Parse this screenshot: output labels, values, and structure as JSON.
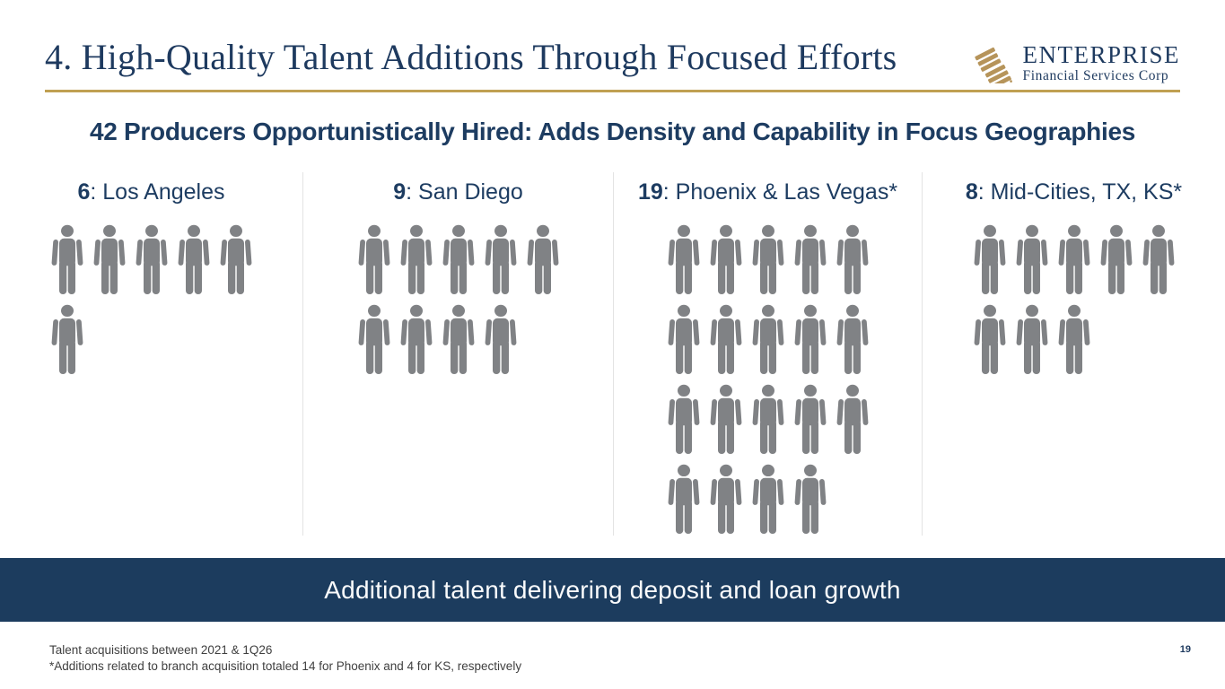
{
  "slide": {
    "title": "4. High-Quality Talent Additions Through Focused Efforts",
    "page_number": "19"
  },
  "logo": {
    "name": "ENTERPRISE",
    "tagline": "Financial Services Corp"
  },
  "subtitle": "42 Producers Opportunistically Hired: Adds Density and Capability in Focus Geographies",
  "columns": [
    {
      "count": "6",
      "rest": ": Los Angeles",
      "icons": 6
    },
    {
      "count": "9",
      "rest": ": San Diego",
      "icons": 9
    },
    {
      "count": "19",
      "rest": ": Phoenix & Las Vegas*",
      "icons": 19
    },
    {
      "count": "8",
      "rest": ": Mid-Cities, TX, KS*",
      "icons": 8
    }
  ],
  "chart_data": {
    "type": "bar",
    "categories": [
      "Los Angeles",
      "San Diego",
      "Phoenix & Las Vegas*",
      "Mid-Cities, TX, KS*"
    ],
    "values": [
      6,
      9,
      19,
      8
    ],
    "title": "42 Producers Opportunistically Hired: Adds Density and Capability in Focus Geographies",
    "layout": "pictograph of person icons, max 5 per row, left-aligned rows"
  },
  "banner": "Additional talent delivering deposit and loan growth",
  "footnotes": [
    "Talent acquisitions between 2021 & 1Q26",
    "*Additions related to branch acquisition totaled 14 for Phoenix and 4 for KS, respectively"
  ],
  "colors": {
    "navy": "#1e3a5f",
    "banner_navy": "#1c3c5e",
    "gold": "#c0a052",
    "logo_gold": "#b6945a",
    "icon_gray": "#808285",
    "divider_gray": "#e3e3e3"
  }
}
